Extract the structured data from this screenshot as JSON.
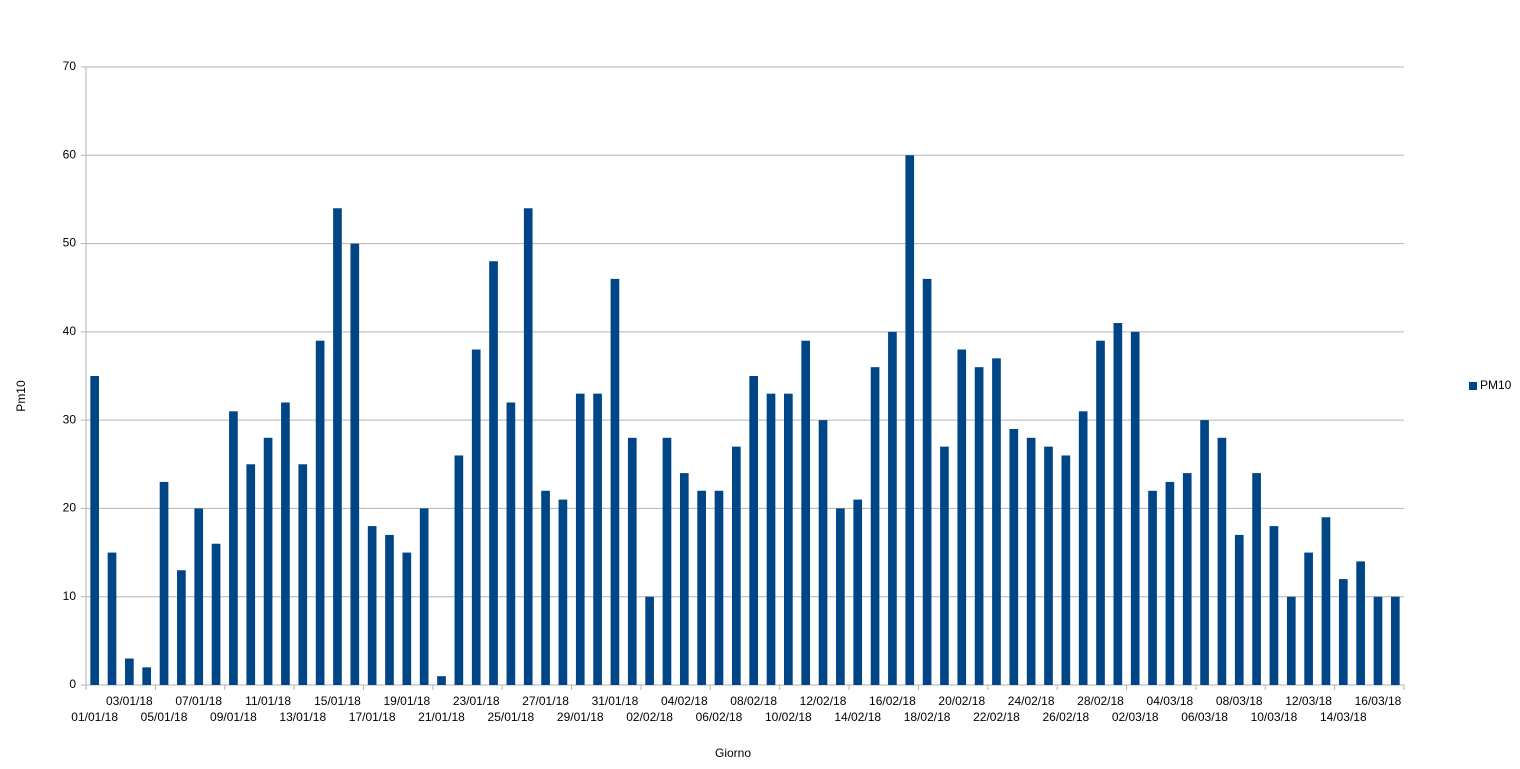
{
  "chart_data": {
    "type": "bar",
    "x_label": "Giorno",
    "y_label": "Pm10",
    "categories": [
      "01/01/18",
      null,
      "03/01/18",
      null,
      "05/01/18",
      null,
      "07/01/18",
      null,
      "09/01/18",
      null,
      "11/01/18",
      null,
      "13/01/18",
      null,
      "15/01/18",
      null,
      "17/01/18",
      null,
      "19/01/18",
      null,
      "21/01/18",
      null,
      "23/01/18",
      null,
      "25/01/18",
      null,
      "27/01/18",
      null,
      "29/01/18",
      null,
      "31/01/18",
      null,
      "02/02/18",
      null,
      "04/02/18",
      null,
      "06/02/18",
      null,
      "08/02/18",
      null,
      "10/02/18",
      null,
      "12/02/18",
      null,
      "14/02/18",
      null,
      "16/02/18",
      null,
      "18/02/18",
      null,
      "20/02/18",
      null,
      "22/02/18",
      null,
      "24/02/18",
      null,
      "26/02/18",
      null,
      "28/02/18",
      null,
      "02/03/18",
      null,
      "04/03/18",
      null,
      "06/03/18",
      null,
      "08/03/18",
      null,
      "10/03/18",
      null,
      "12/03/18",
      null,
      "14/03/18",
      null,
      "16/03/18",
      null
    ],
    "series": [
      {
        "name": "PM10",
        "color": "#004586",
        "values": [
          35,
          15,
          3,
          2,
          23,
          13,
          20,
          16,
          31,
          25,
          28,
          32,
          25,
          39,
          54,
          50,
          18,
          17,
          15,
          20,
          1,
          26,
          38,
          48,
          32,
          54,
          22,
          21,
          33,
          33,
          46,
          28,
          10,
          28,
          24,
          22,
          22,
          27,
          35,
          33,
          33,
          39,
          30,
          20,
          21,
          36,
          40,
          60,
          46,
          27,
          38,
          36,
          37,
          29,
          28,
          27,
          26,
          31,
          39,
          41,
          40,
          22,
          23,
          24,
          30,
          28,
          17,
          24,
          18,
          10,
          15,
          19,
          12,
          14,
          10,
          10
        ]
      }
    ],
    "ylim": [
      0,
      70
    ],
    "yticks": [
      0,
      10,
      20,
      30,
      40,
      50,
      60,
      70
    ],
    "grid": true,
    "legend": "right"
  }
}
